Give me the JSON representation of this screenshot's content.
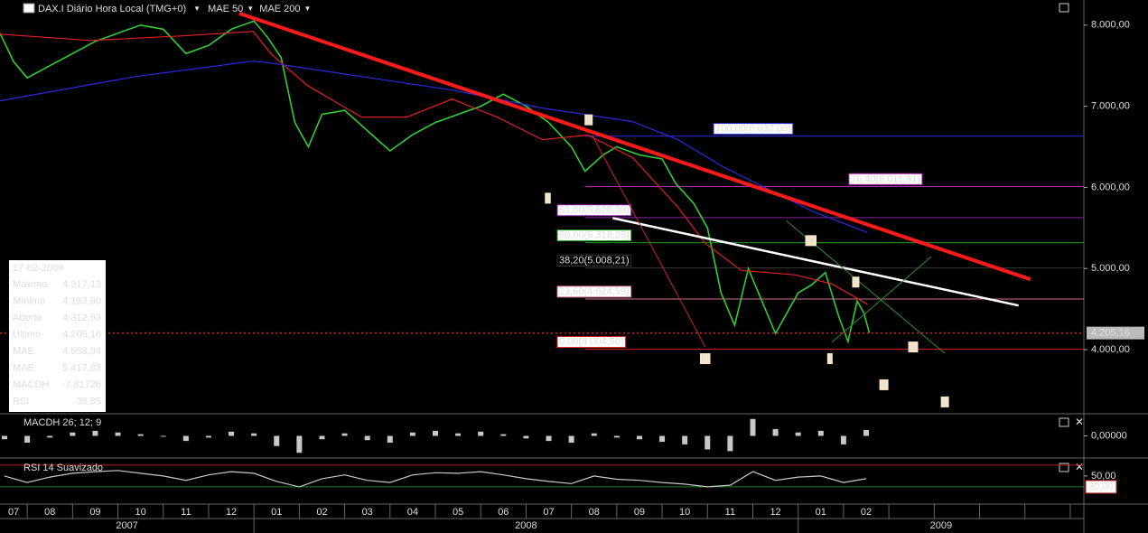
{
  "chart_data": {
    "type": "line",
    "xlim": [
      0.4,
      24.3
    ],
    "xticks": [
      {
        "value": 0,
        "label": "07"
      },
      {
        "value": 1,
        "label": "08"
      },
      {
        "value": 2,
        "label": "09"
      },
      {
        "value": 3,
        "label": "10"
      },
      {
        "value": 4,
        "label": "11"
      },
      {
        "value": 5,
        "label": "12"
      },
      {
        "value": 6,
        "label": "01"
      },
      {
        "value": 7,
        "label": "02"
      },
      {
        "value": 8,
        "label": "03"
      },
      {
        "value": 9,
        "label": "04"
      },
      {
        "value": 10,
        "label": "05"
      },
      {
        "value": 11,
        "label": "06"
      },
      {
        "value": 12,
        "label": "07"
      },
      {
        "value": 13,
        "label": "08"
      },
      {
        "value": 14,
        "label": "09"
      },
      {
        "value": 15,
        "label": "10"
      },
      {
        "value": 16,
        "label": "11"
      },
      {
        "value": 17,
        "label": "12"
      },
      {
        "value": 18,
        "label": "01"
      },
      {
        "value": 19,
        "label": "02"
      },
      {
        "value": 20,
        "label": null
      },
      {
        "value": 21,
        "label": null
      },
      {
        "value": 22,
        "label": null
      },
      {
        "value": 23,
        "label": null
      },
      {
        "value": 24,
        "label": null
      }
    ],
    "x_year_ticks": [
      {
        "value": 0,
        "label": "2007"
      },
      {
        "value": 6,
        "label": "2008"
      },
      {
        "value": 18,
        "label": "2009"
      }
    ],
    "ylim": [
      3210,
      8310
    ],
    "yticks": [
      {
        "value": 4000,
        "label": "4.000,00"
      },
      {
        "value": 5000,
        "label": "5.000,00"
      },
      {
        "value": 6000,
        "label": "6.000,00"
      },
      {
        "value": 7000,
        "label": "7.000,00"
      },
      {
        "value": 8000,
        "label": "8.000,00"
      }
    ],
    "series": [
      {
        "name": "DAX.I Diário Hora Local (TMG+0)",
        "color": "#33cc33",
        "x": [
          0.4,
          0.7,
          1.0,
          1.5,
          2.0,
          2.5,
          3.0,
          3.5,
          4.0,
          4.5,
          5.0,
          5.5,
          6.0,
          6.3,
          6.6,
          6.9,
          7.2,
          7.5,
          8.0,
          8.5,
          9.0,
          9.5,
          10.0,
          10.5,
          11.0,
          11.5,
          12.0,
          12.5,
          13.0,
          13.3,
          13.7,
          14.0,
          14.5,
          15.0,
          15.3,
          15.7,
          16.0,
          16.3,
          16.6,
          16.9,
          17.2,
          17.5,
          17.8,
          18.0,
          18.3,
          18.6,
          18.9,
          19.1,
          19.3,
          19.45,
          19.57
        ],
        "values": [
          7900,
          7550,
          7350,
          7500,
          7650,
          7800,
          7900,
          8000,
          7950,
          7650,
          7750,
          7950,
          8050,
          7850,
          7600,
          6800,
          6500,
          6900,
          6950,
          6700,
          6450,
          6650,
          6800,
          6900,
          7000,
          7150,
          7000,
          6800,
          6500,
          6200,
          6400,
          6500,
          6400,
          6350,
          6050,
          5800,
          5500,
          4700,
          4300,
          5000,
          4600,
          4200,
          4500,
          4700,
          4800,
          4950,
          4400,
          4100,
          4600,
          4450,
          4205.16
        ]
      },
      {
        "name": "MAE 50",
        "color": "#e02020",
        "x": [
          0.4,
          2.39,
          4.39,
          5.98,
          6.38,
          7.18,
          8.37,
          9.37,
          10.37,
          11.36,
          12.36,
          13.36,
          14.35,
          15.35,
          15.95,
          16.74,
          17.94,
          18.74,
          19.53
        ],
        "values": [
          7889,
          7811,
          7867,
          7922,
          7644,
          7256,
          6867,
          6867,
          7089,
          6867,
          6589,
          6644,
          6367,
          5756,
          5311,
          4978,
          4922,
          4811,
          4560
        ]
      },
      {
        "name": "MAE 200",
        "color": "#2a2ae0",
        "x": [
          0.4,
          3.39,
          5.98,
          6.38,
          8.77,
          10.37,
          12.36,
          14.35,
          15.35,
          16.34,
          17.34,
          18.34,
          19.53
        ],
        "values": [
          7067,
          7367,
          7556,
          7533,
          7333,
          7200,
          6978,
          6811,
          6589,
          6256,
          5978,
          5700,
          5444
        ]
      }
    ],
    "last_price": {
      "value": 4205.16,
      "label": "4.205,16"
    },
    "fib_levels": [
      {
        "value": 6632.0,
        "label": "100,00(6.632,00)",
        "color": "#2a2ae0"
      },
      {
        "value": 6011.91,
        "label": "76,40(6.011,91)",
        "color": "#c030c0"
      },
      {
        "value": 5628.3,
        "label": "61,80(5.628,30)",
        "color": "#8a20a0"
      },
      {
        "value": 5318.25,
        "label": "50,00(5.318,25)",
        "color": "#20a020"
      },
      {
        "value": 5008.21,
        "label": "38,20(5.008,21)",
        "color": "#333333"
      },
      {
        "value": 4624.59,
        "label": "23,60(4.624,59)",
        "color": "#d07090"
      },
      {
        "value": 4004.5,
        "label": "0,00(4.004,50)",
        "color": "#e02020"
      }
    ],
    "trendlines": [
      {
        "color": "#ff1a1a",
        "x": [
          5.68,
          23.12
        ],
        "values": [
          8144,
          4867
        ]
      },
      {
        "color": "#ffffff",
        "x": [
          13.91,
          22.86
        ],
        "values": [
          5622,
          4544
        ]
      },
      {
        "color": "#2e8b2e",
        "x": [
          17.74,
          21.23
        ],
        "values": [
          5589,
          3956
        ]
      },
      {
        "color": "#2e8b2e",
        "x": [
          18.74,
          20.93
        ],
        "values": [
          4089,
          5144
        ]
      },
      {
        "color": "#d02020",
        "x": [
          13.46,
          15.95
        ],
        "values": [
          6644,
          4033
        ]
      }
    ],
    "wave_labels": [
      {
        "text": "I",
        "x": 12.48,
        "y": 5867
      },
      {
        "text": "II",
        "x": 13.38,
        "y": 6833
      },
      {
        "text": "III",
        "x": 15.95,
        "y": 3889
      },
      {
        "text": "IV",
        "x": 18.28,
        "y": 5344
      },
      {
        "text": "i",
        "x": 18.7,
        "y": 3889
      },
      {
        "text": "ii",
        "x": 19.27,
        "y": 4833
      },
      {
        "text": "iii",
        "x": 19.89,
        "y": 3567
      },
      {
        "text": "iv",
        "x": 20.53,
        "y": 4033
      },
      {
        "text": "v",
        "x": 21.23,
        "y": 3356
      }
    ],
    "info_box": {
      "date": "17-02-2009",
      "rows": [
        {
          "label": "Máximo",
          "value": "4.317,13",
          "color": "#000000"
        },
        {
          "label": "Mínimo",
          "value": "4.193,90",
          "color": "#000000"
        },
        {
          "label": "Aberto",
          "value": "4.312,63",
          "color": "#000000"
        },
        {
          "label": "Último",
          "value": "4.205,16",
          "color": "#000000"
        },
        {
          "label": "MAE",
          "value": "4.558,94",
          "color": "#c00000"
        },
        {
          "label": "MAE",
          "value": "5.417,83",
          "color": "#0000c0"
        },
        {
          "label": "MACDH",
          "value": "-7,81726",
          "color": "#a0a0a0"
        },
        {
          "label": "RSI",
          "value": "38,85",
          "color": "#a0a0a0"
        }
      ]
    },
    "macd": {
      "title": "MACDH 26; 12; 9",
      "color": "#c8c8c8",
      "ylim": [
        -120,
        120
      ],
      "yticks": [
        {
          "value": 0,
          "label": "0,00000"
        }
      ],
      "x": [
        0.5,
        1,
        1.5,
        2,
        2.5,
        3,
        3.5,
        4,
        4.5,
        5,
        5.5,
        6,
        6.5,
        7,
        7.5,
        8,
        8.5,
        9,
        9.5,
        10,
        10.5,
        11,
        11.5,
        12,
        12.5,
        13,
        13.5,
        14,
        14.5,
        15,
        15.5,
        16,
        16.5,
        17,
        17.5,
        18,
        18.5,
        19,
        19.5
      ],
      "values": [
        -20,
        -40,
        -10,
        20,
        30,
        20,
        10,
        -5,
        -30,
        -10,
        25,
        15,
        -60,
        -100,
        -20,
        15,
        -25,
        -40,
        20,
        30,
        15,
        25,
        10,
        -15,
        -30,
        -40,
        15,
        -10,
        -20,
        -35,
        -50,
        -80,
        -90,
        100,
        40,
        20,
        30,
        -50,
        35
      ]
    },
    "rsi": {
      "title": "RSI 14 Suavizado",
      "color": "#c8c8c8",
      "ylim": [
        0,
        78
      ],
      "yticks": [
        {
          "value": 50,
          "label": "50,00"
        }
      ],
      "levels": [
        {
          "value": 70,
          "color": "#c02020"
        },
        {
          "value": 30,
          "color": "#208020",
          "label": "30,00"
        }
      ],
      "x": [
        0.5,
        1,
        1.5,
        2,
        2.5,
        3,
        3.5,
        4,
        4.5,
        5,
        5.5,
        6,
        6.5,
        7,
        7.5,
        8,
        8.5,
        9,
        9.5,
        10,
        10.5,
        11,
        11.5,
        12,
        12.5,
        13,
        13.5,
        14,
        14.5,
        15,
        15.5,
        16,
        16.5,
        17,
        17.5,
        18,
        18.5,
        19,
        19.5
      ],
      "values": [
        50,
        38,
        48,
        55,
        58,
        60,
        55,
        50,
        42,
        52,
        58,
        55,
        40,
        30,
        45,
        52,
        42,
        38,
        52,
        56,
        55,
        58,
        52,
        45,
        40,
        36,
        50,
        44,
        42,
        38,
        35,
        30,
        33,
        58,
        42,
        48,
        50,
        38,
        45
      ]
    }
  }
}
